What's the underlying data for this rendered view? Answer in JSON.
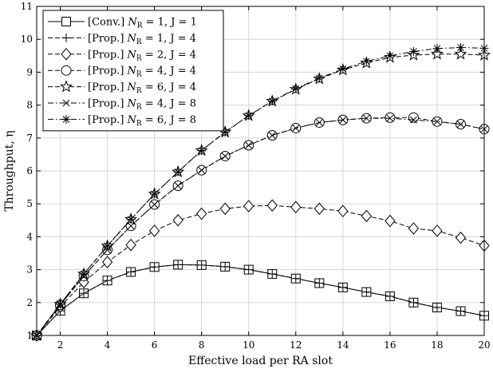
{
  "chart_data": {
    "type": "line",
    "xlabel": "Effective load per RA slot",
    "ylabel": "Throughput, η",
    "xlim": [
      1,
      20
    ],
    "ylim": [
      1,
      11
    ],
    "xticks": [
      2,
      4,
      6,
      8,
      10,
      12,
      14,
      16,
      18,
      20
    ],
    "yticks": [
      1,
      2,
      3,
      4,
      5,
      6,
      7,
      8,
      9,
      10,
      11
    ],
    "grid": true,
    "legend_position": "top-left",
    "x": [
      1,
      2,
      3,
      4,
      5,
      6,
      7,
      8,
      9,
      10,
      11,
      12,
      13,
      14,
      15,
      16,
      17,
      18,
      19,
      20
    ],
    "series": [
      {
        "name": "[Conv.] N_R = 1, J = 1",
        "legend": {
          "prefix": "[Conv.] ",
          "nr": "1",
          "j": "J = 1"
        },
        "marker": "square",
        "line": "solid",
        "values": [
          1.0,
          1.75,
          2.28,
          2.67,
          2.93,
          3.08,
          3.15,
          3.14,
          3.09,
          3.0,
          2.87,
          2.73,
          2.59,
          2.46,
          2.32,
          2.19,
          2.0,
          1.85,
          1.74,
          1.6
        ]
      },
      {
        "name": "[Prop.] N_R = 1, J = 4",
        "legend": {
          "prefix": "[Prop.] ",
          "nr": "1",
          "j": "J = 4"
        },
        "marker": "plus",
        "line": "dashed",
        "values": [
          1.0,
          1.75,
          2.28,
          2.67,
          2.93,
          3.08,
          3.15,
          3.14,
          3.09,
          3.0,
          2.87,
          2.73,
          2.59,
          2.46,
          2.32,
          2.19,
          2.0,
          1.85,
          1.74,
          1.6
        ]
      },
      {
        "name": "[Prop.] N_R = 2, J = 4",
        "legend": {
          "prefix": "[Prop.] ",
          "nr": "2",
          "j": "J = 4"
        },
        "marker": "diamond",
        "line": "dashed",
        "values": [
          1.0,
          1.88,
          2.62,
          3.23,
          3.75,
          4.18,
          4.5,
          4.7,
          4.85,
          4.93,
          4.95,
          4.9,
          4.85,
          4.78,
          4.63,
          4.48,
          4.25,
          4.18,
          3.97,
          3.73
        ]
      },
      {
        "name": "[Prop.] N_R = 4, J = 4",
        "legend": {
          "prefix": "[Prop.] ",
          "nr": "4",
          "j": "J = 4"
        },
        "marker": "circle",
        "line": "dashed",
        "values": [
          1.0,
          1.93,
          2.8,
          3.6,
          4.33,
          4.98,
          5.55,
          6.02,
          6.45,
          6.78,
          7.08,
          7.3,
          7.47,
          7.55,
          7.6,
          7.62,
          7.62,
          7.5,
          7.42,
          7.27
        ]
      },
      {
        "name": "[Prop.] N_R = 6, J = 4",
        "legend": {
          "prefix": "[Prop.] ",
          "nr": "6",
          "j": "J = 4"
        },
        "marker": "star",
        "line": "dashed",
        "values": [
          1.0,
          1.95,
          2.87,
          3.72,
          4.53,
          5.3,
          5.97,
          6.62,
          7.18,
          7.68,
          8.12,
          8.48,
          8.8,
          9.07,
          9.28,
          9.45,
          9.52,
          9.55,
          9.55,
          9.52
        ]
      },
      {
        "name": "[Prop.] N_R = 4, J = 8",
        "legend": {
          "prefix": "[Prop.] ",
          "nr": "4",
          "j": "J = 8"
        },
        "marker": "x",
        "line": "dashdot",
        "values": [
          1.0,
          1.93,
          2.8,
          3.6,
          4.33,
          4.98,
          5.55,
          6.02,
          6.45,
          6.78,
          7.08,
          7.3,
          7.47,
          7.55,
          7.6,
          7.6,
          7.55,
          7.5,
          7.42,
          7.27
        ]
      },
      {
        "name": "[Prop.] N_R = 6, J = 8",
        "legend": {
          "prefix": "[Prop.] ",
          "nr": "6",
          "j": "J = 8"
        },
        "marker": "asterisk",
        "line": "dashdot",
        "values": [
          1.0,
          1.95,
          2.87,
          3.72,
          4.53,
          5.3,
          5.97,
          6.62,
          7.18,
          7.68,
          8.12,
          8.5,
          8.82,
          9.1,
          9.33,
          9.5,
          9.63,
          9.72,
          9.75,
          9.73
        ]
      }
    ]
  }
}
